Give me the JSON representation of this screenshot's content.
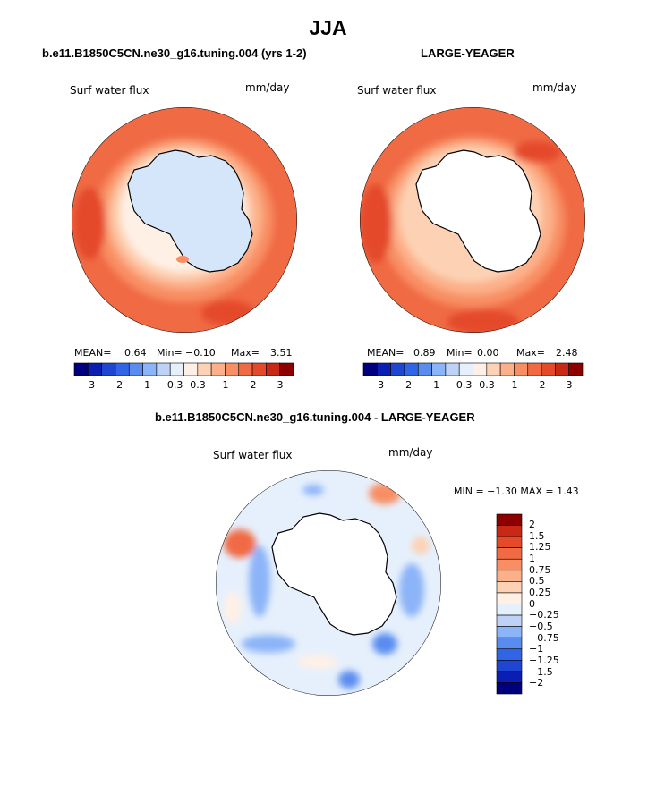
{
  "title": "JJA",
  "panels": [
    {
      "title": "b.e11.B1850C5CN.ne30_g16.tuning.004 (yrs 1-2)",
      "variable": "Surf water flux",
      "units": "mm/day",
      "stats": {
        "mean_label": "MEAN=",
        "mean": "0.64",
        "min_label": "Min=",
        "min": "−0.10",
        "max_label": "Max=",
        "max": "3.51"
      },
      "colorbar_ticks": [
        "−3",
        "−2",
        "−1",
        "−0.3",
        "0.3",
        "1",
        "2",
        "3"
      ]
    },
    {
      "title": "LARGE-YEAGER",
      "variable": "Surf water flux",
      "units": "mm/day",
      "stats": {
        "mean_label": "MEAN=",
        "mean": "0.89",
        "min_label": "Min=",
        "min": "0.00",
        "max_label": "Max=",
        "max": "2.48"
      },
      "colorbar_ticks": [
        "−3",
        "−2",
        "−1",
        "−0.3",
        "0.3",
        "1",
        "2",
        "3"
      ]
    },
    {
      "title": "b.e11.B1850C5CN.ne30_g16.tuning.004 - LARGE-YEAGER",
      "variable": "Surf water flux",
      "units": "mm/day",
      "minmax": "MIN =  −1.30  MAX =   1.43",
      "colorbar_ticks": [
        "2",
        "1.5",
        "1.25",
        "1",
        "0.75",
        "0.5",
        "0.25",
        "0",
        "−0.25",
        "−0.5",
        "−0.75",
        "−1",
        "−1.25",
        "−1.5",
        "−2"
      ]
    }
  ],
  "chart_data": [
    {
      "type": "heatmap",
      "title": "b.e11.B1850C5CN.ne30_g16.tuning.004 (yrs 1-2)",
      "projection": "south polar stereographic",
      "variable": "Surf water flux",
      "units": "mm/day",
      "mean": 0.64,
      "min": -0.1,
      "max": 3.51,
      "contour_levels": [
        -3,
        -2.5,
        -2,
        -1.5,
        -1,
        -0.6,
        -0.3,
        0,
        0.3,
        0.6,
        1,
        1.5,
        2,
        2.5,
        3
      ],
      "colors": [
        "#00007f",
        "#0a1eb4",
        "#1e46d2",
        "#3264e6",
        "#5a8cf0",
        "#8cb4f8",
        "#bed2f8",
        "#e6f0fc",
        "#fff0e6",
        "#fdd2b4",
        "#fcb08a",
        "#f88e64",
        "#f06a44",
        "#e44a2a",
        "#c82814",
        "#8c0000"
      ]
    },
    {
      "type": "heatmap",
      "title": "LARGE-YEAGER",
      "projection": "south polar stereographic",
      "variable": "Surf water flux",
      "units": "mm/day",
      "mean": 0.89,
      "min": 0.0,
      "max": 2.48,
      "contour_levels": [
        -3,
        -2.5,
        -2,
        -1.5,
        -1,
        -0.6,
        -0.3,
        0,
        0.3,
        0.6,
        1,
        1.5,
        2,
        2.5,
        3
      ],
      "colors": [
        "#00007f",
        "#0a1eb4",
        "#1e46d2",
        "#3264e6",
        "#5a8cf0",
        "#8cb4f8",
        "#bed2f8",
        "#e6f0fc",
        "#fff0e6",
        "#fdd2b4",
        "#fcb08a",
        "#f88e64",
        "#f06a44",
        "#e44a2a",
        "#c82814",
        "#8c0000"
      ]
    },
    {
      "type": "heatmap",
      "title": "b.e11.B1850C5CN.ne30_g16.tuning.004 - LARGE-YEAGER",
      "projection": "south polar stereographic",
      "variable": "Surf water flux",
      "units": "mm/day",
      "min": -1.3,
      "max": 1.43,
      "contour_levels": [
        -2,
        -1.5,
        -1.25,
        -1,
        -0.75,
        -0.5,
        -0.25,
        0,
        0.25,
        0.5,
        0.75,
        1,
        1.25,
        1.5,
        2
      ],
      "colors": [
        "#00007f",
        "#0a1eb4",
        "#1e46d2",
        "#3264e6",
        "#5a8cf0",
        "#8cb4f8",
        "#bed2f8",
        "#e6f0fc",
        "#fff0e6",
        "#fdd2b4",
        "#fcb08a",
        "#f88e64",
        "#f06a44",
        "#e44a2a",
        "#c82814",
        "#8c0000"
      ]
    }
  ]
}
